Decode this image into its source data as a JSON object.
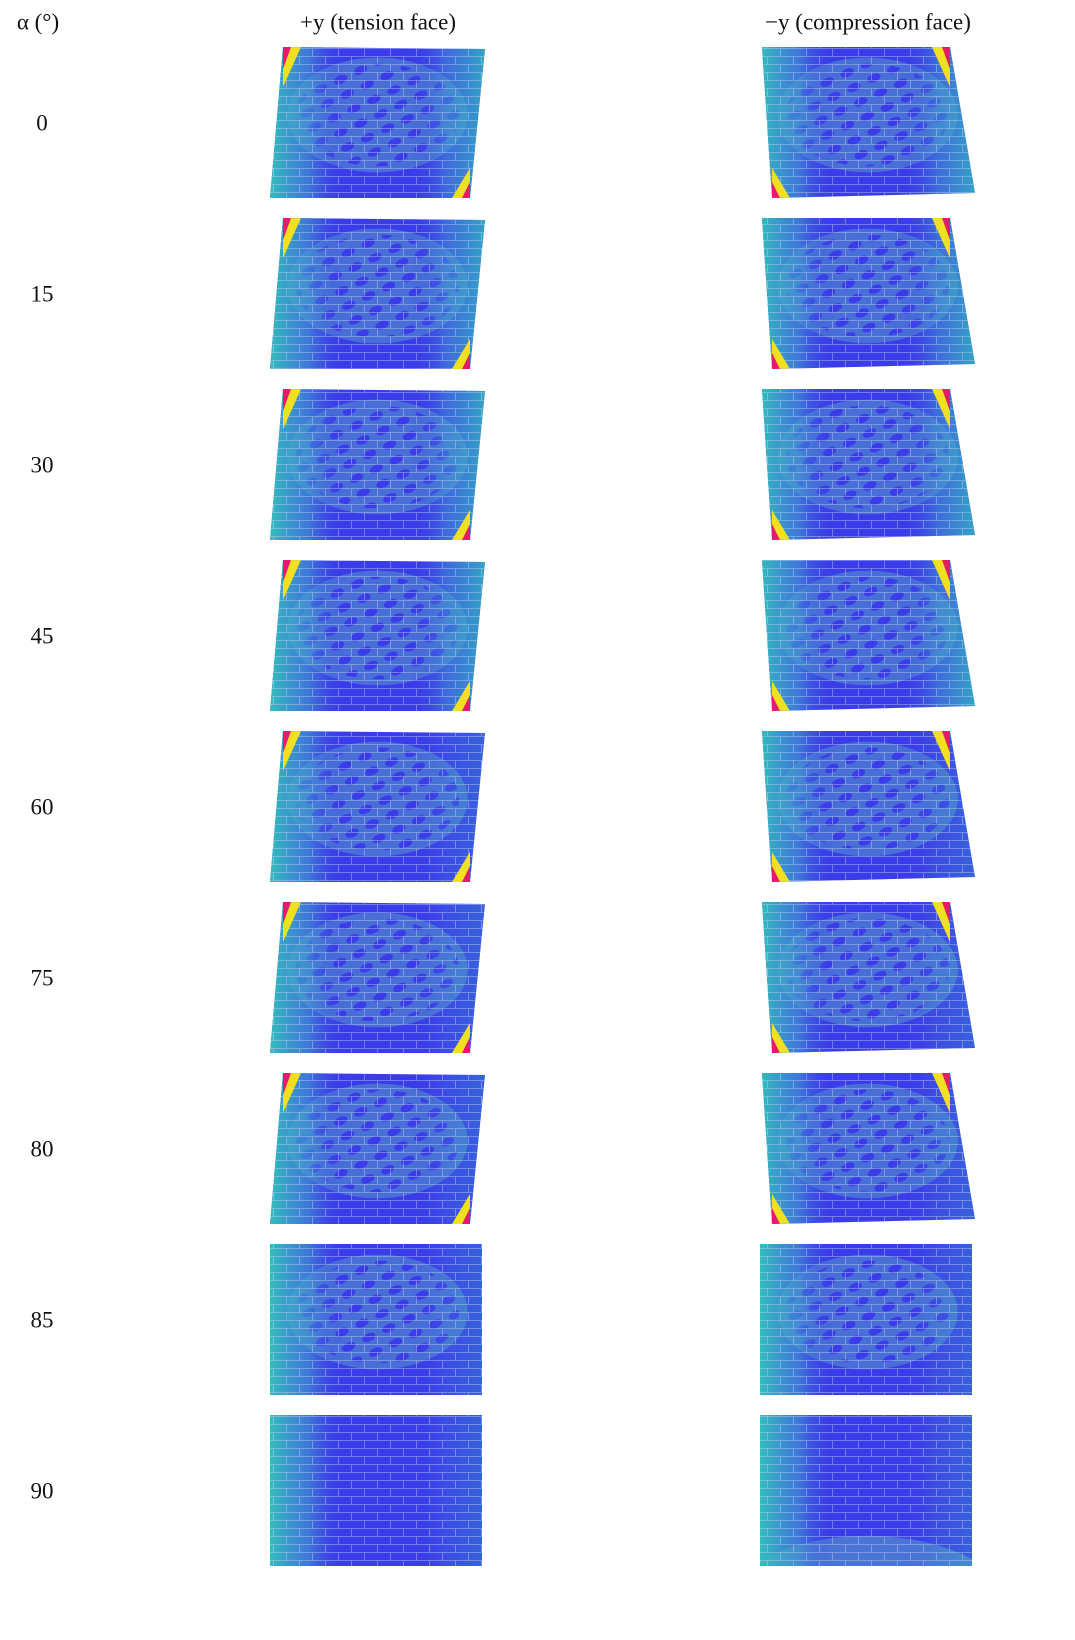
{
  "header": {
    "alpha": "α (°)",
    "tension": "+y (tension face)",
    "compression": "−y (compression face)"
  },
  "rows": [
    0,
    15,
    30,
    45,
    60,
    75,
    80,
    85,
    90
  ]
}
